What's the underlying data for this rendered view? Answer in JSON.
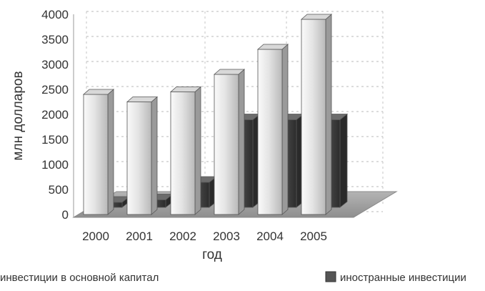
{
  "chart_data": {
    "type": "bar",
    "style": "3d-column",
    "categories": [
      "2000",
      "2001",
      "2002",
      "2003",
      "2004",
      "2005"
    ],
    "series": [
      {
        "name": "инвестиции в основной капитал",
        "values": [
          2400,
          2250,
          2450,
          2800,
          3300,
          3900
        ],
        "color": "#ededed"
      },
      {
        "name": "иностранные инвестиции",
        "values": [
          100,
          150,
          500,
          1750,
          1750,
          1750
        ],
        "color": "#4a4a4a"
      }
    ],
    "xlabel": "год",
    "ylabel": "млн долларов",
    "ylim": [
      0,
      4000
    ],
    "yticks": [
      0,
      500,
      1000,
      1500,
      2000,
      2500,
      3000,
      3500,
      4000
    ],
    "grid": true,
    "legend_position": "bottom"
  }
}
